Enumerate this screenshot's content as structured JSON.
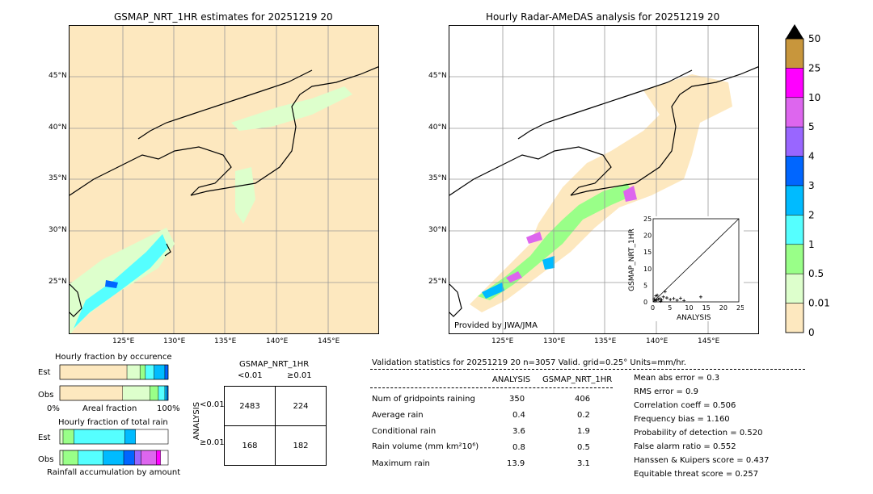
{
  "left_map": {
    "title": "GSMAP_NRT_1HR estimates for 20251219 20",
    "lat_labels": [
      "45°N",
      "40°N",
      "35°N",
      "30°N",
      "25°N"
    ],
    "lon_labels": [
      "125°E",
      "130°E",
      "135°E",
      "140°E",
      "145°E"
    ]
  },
  "right_map": {
    "title": "Hourly Radar-AMeDAS analysis for 20251219 20",
    "lat_labels": [
      "45°N",
      "40°N",
      "35°N",
      "30°N",
      "25°N"
    ],
    "lon_labels": [
      "125°E",
      "130°E",
      "135°E",
      "140°E",
      "145°E"
    ],
    "credit": "Provided by JWA/JMA"
  },
  "inset": {
    "ylabel": "GSMAP_NRT_1HR",
    "xlabel": "ANALYSIS",
    "ticks": [
      "0",
      "5",
      "10",
      "15",
      "20",
      "25"
    ]
  },
  "colorbar": {
    "labels": [
      "50",
      "25",
      "10",
      "5",
      "4",
      "3",
      "2",
      "1",
      "0.5",
      "0.01",
      "0"
    ],
    "colors": [
      "#c8963c",
      "#ff00ff",
      "#dd66ee",
      "#9966ff",
      "#0066ff",
      "#00bbff",
      "#55ffff",
      "#99ff88",
      "#ddffcc",
      "#fde8bf"
    ]
  },
  "occurrence": {
    "title": "Hourly fraction by occurence",
    "rows": [
      "Est",
      "Obs"
    ],
    "xlabel_left": "0%",
    "xlabel_mid": "Areal fraction",
    "xlabel_right": "100%"
  },
  "total_rain": {
    "title": "Hourly fraction of total rain",
    "rows": [
      "Est",
      "Obs"
    ],
    "xlabel": "Rainfall accumulation by amount"
  },
  "contingency": {
    "col_title": "GSMAP_NRT_1HR",
    "col_labels": [
      "<0.01",
      "≥0.01"
    ],
    "row_title": "ANALYSIS",
    "row_labels": [
      "<0.01",
      "≥0.01"
    ],
    "cells": [
      [
        "2483",
        "224"
      ],
      [
        "168",
        "182"
      ]
    ]
  },
  "validation": {
    "header": "Validation statistics for 20251219 20  n=3057 Valid. grid=0.25° Units=mm/hr.",
    "col_headers": [
      "ANALYSIS",
      "GSMAP_NRT_1HR"
    ],
    "rows": [
      {
        "label": "Num of gridpoints raining",
        "analysis": "350",
        "gsmap": "406"
      },
      {
        "label": "Average rain",
        "analysis": "0.4",
        "gsmap": "0.2"
      },
      {
        "label": "Conditional rain",
        "analysis": "3.6",
        "gsmap": "1.9"
      },
      {
        "label": "Rain volume (mm km²10⁶)",
        "analysis": "0.8",
        "gsmap": "0.5"
      },
      {
        "label": "Maximum rain",
        "analysis": "13.9",
        "gsmap": "3.1"
      }
    ],
    "scores": [
      "Mean abs error =    0.3",
      "RMS error =    0.9",
      "Correlation coeff =  0.506",
      "Frequency bias =  1.160",
      "Probability of detection =  0.520",
      "False alarm ratio =  0.552",
      "Hanssen & Kuipers score =  0.437",
      "Equitable threat score =  0.257"
    ]
  },
  "chart_data": [
    {
      "type": "bar",
      "title": "Hourly fraction by occurence",
      "categories": [
        "Est",
        "Obs"
      ],
      "series_colors": [
        "#fde8bf",
        "#ddffcc",
        "#99ff88",
        "#55ffff",
        "#00bbff",
        "#0066ff"
      ],
      "values": [
        [
          0.62,
          0.12,
          0.05,
          0.08,
          0.1,
          0.03
        ],
        [
          0.58,
          0.25,
          0.08,
          0.06,
          0.02,
          0.01
        ]
      ]
    },
    {
      "type": "bar",
      "title": "Hourly fraction of total rain",
      "categories": [
        "Est",
        "Obs"
      ],
      "series_colors": [
        "#ddffcc",
        "#99ff88",
        "#55ffff",
        "#00bbff",
        "#0066ff",
        "#9966ff",
        "#dd66ee",
        "#ff00ff"
      ],
      "values": [
        [
          0.03,
          0.1,
          0.47,
          0.1,
          0,
          0,
          0,
          0
        ],
        [
          0.03,
          0.14,
          0.23,
          0.19,
          0.1,
          0.06,
          0.14,
          0.04
        ]
      ]
    },
    {
      "type": "scatter",
      "title": "",
      "xlabel": "ANALYSIS",
      "ylabel": "GSMAP_NRT_1HR",
      "xlim": [
        0,
        25
      ],
      "ylim": [
        0,
        25
      ],
      "points": [
        [
          0.5,
          0.3
        ],
        [
          1,
          0.5
        ],
        [
          1.5,
          0.8
        ],
        [
          2,
          1
        ],
        [
          2.5,
          0.6
        ],
        [
          3,
          1.5
        ],
        [
          0.3,
          0.9
        ],
        [
          4,
          1.2
        ],
        [
          5,
          0.7
        ],
        [
          1.2,
          2
        ],
        [
          6,
          1
        ],
        [
          7,
          0.5
        ],
        [
          8,
          1.1
        ],
        [
          13.9,
          1.5
        ],
        [
          9,
          0.4
        ],
        [
          0.8,
          1.8
        ],
        [
          3.5,
          3.1
        ],
        [
          2.2,
          0.2
        ]
      ]
    }
  ]
}
